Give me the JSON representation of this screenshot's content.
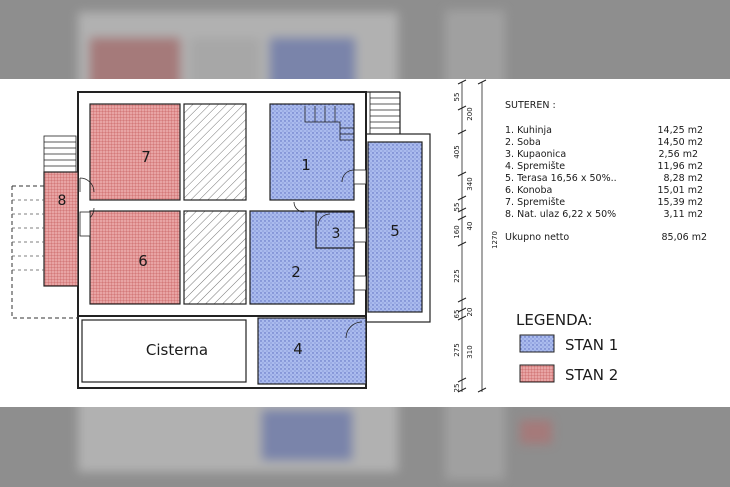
{
  "colors": {
    "stan1": "#aabbee",
    "stan2": "#e8a4a4",
    "line": "#222222"
  },
  "rooms": {
    "r1": "1",
    "r2": "2",
    "r3": "3",
    "r4": "4",
    "r5": "5",
    "r6": "6",
    "r7": "7",
    "r8": "8",
    "cisterna": "Cisterna"
  },
  "dims": {
    "top": [
      "55",
      "200",
      "405",
      "340",
      "55",
      "40",
      "160",
      "225",
      "20",
      "65",
      "275",
      "310",
      "25"
    ],
    "total": "1270"
  },
  "table": {
    "heading": "SUTEREN :",
    "rows": [
      {
        "name": "1. Kuhinja",
        "area": "14,25 m2"
      },
      {
        "name": "2. Soba",
        "area": "14,50 m2"
      },
      {
        "name": "3. Kupaonica",
        "area": "2,56  m2"
      },
      {
        "name": "4. Spremište",
        "area": "11,96 m2"
      },
      {
        "name": "5. Terasa  16,56 x 50%..",
        "area": "8,28 m2"
      },
      {
        "name": "6. Konoba",
        "area": "15,01 m2"
      },
      {
        "name": "7. Spremište",
        "area": "15,39 m2"
      },
      {
        "name": "8. Nat. ulaz 6,22 x 50%",
        "area": "3,11 m2"
      }
    ],
    "total_label": "Ukupno netto",
    "total_value": "85,06 m2"
  },
  "legend": {
    "title": "LEGENDA:",
    "items": [
      {
        "label": "STAN 1",
        "color": "#aabbee"
      },
      {
        "label": "STAN 2",
        "color": "#e8a4a4"
      }
    ]
  }
}
